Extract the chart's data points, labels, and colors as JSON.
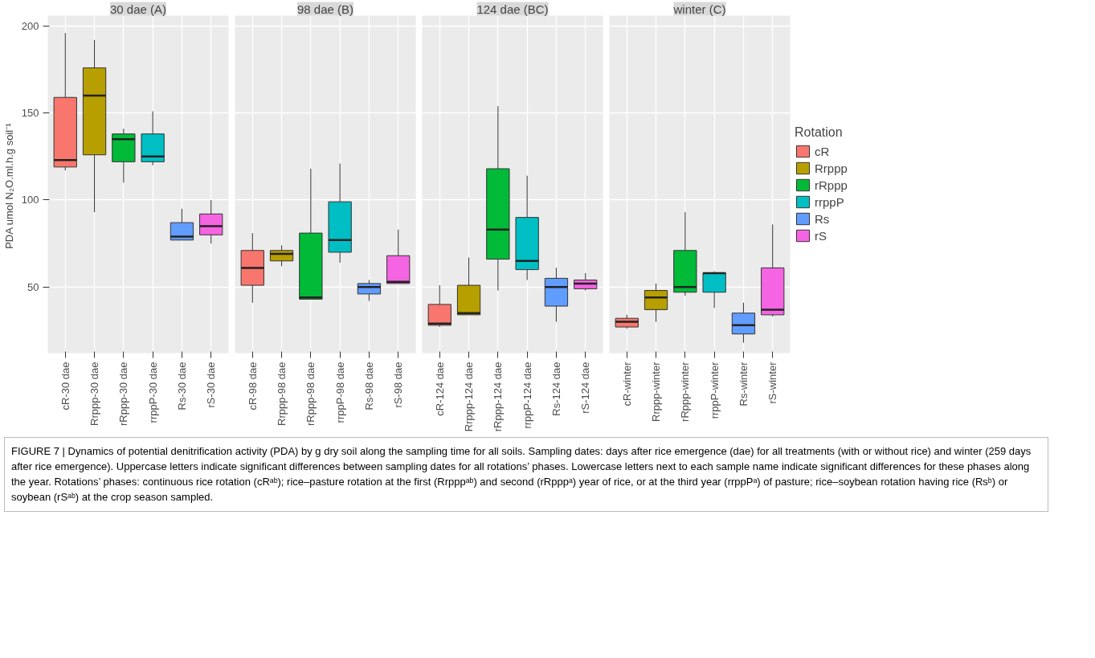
{
  "chart_data": [
    {
      "type": "box",
      "title": "30 dae (A)",
      "ylabel": "PDA  umol N₂O.ml.h.g soil⁻¹",
      "categories": [
        "cR-30 dae",
        "Rrppp-30 dae",
        "rRppp-30 dae",
        "rrppP-30 dae",
        "Rs-30 dae",
        "rS-30 dae"
      ],
      "ylim": [
        12,
        206
      ],
      "yticks": [
        50,
        100,
        150,
        200
      ],
      "grid": true,
      "series": [
        {
          "color": "#f8766d",
          "boxes": [
            {
              "low": 117,
              "q1": 119,
              "median": 123,
              "q3": 159,
              "high": 196
            },
            null,
            null,
            null,
            null,
            null
          ]
        },
        {
          "color": "#b79f00",
          "boxes": [
            null,
            {
              "low": 93,
              "q1": 126,
              "median": 160,
              "q3": 176,
              "high": 192
            },
            null,
            null,
            null,
            null
          ]
        },
        {
          "color": "#00ba38",
          "boxes": [
            null,
            null,
            {
              "low": 110,
              "q1": 122,
              "median": 135,
              "q3": 138,
              "high": 141
            },
            null,
            null,
            null
          ]
        },
        {
          "color": "#00bfc4",
          "boxes": [
            null,
            null,
            null,
            {
              "low": 120,
              "q1": 122,
              "median": 125,
              "q3": 138,
              "high": 151
            },
            null,
            null
          ]
        },
        {
          "color": "#619cff",
          "boxes": [
            null,
            null,
            null,
            null,
            {
              "low": 77,
              "q1": 77,
              "median": 79,
              "q3": 87,
              "high": 95
            },
            null
          ]
        },
        {
          "color": "#f564e3",
          "boxes": [
            null,
            null,
            null,
            null,
            null,
            {
              "low": 75,
              "q1": 80,
              "median": 85,
              "q3": 92,
              "high": 100
            }
          ]
        }
      ]
    },
    {
      "type": "box",
      "title": "98 dae (B)",
      "categories": [
        "cR-98 dae",
        "Rrppp-98 dae",
        "rRppp-98 dae",
        "rrppP-98 dae",
        "Rs-98 dae",
        "rS-98 dae"
      ],
      "ylim": [
        12,
        206
      ],
      "yticks": [
        50,
        100,
        150,
        200
      ],
      "grid": true,
      "tick_labels": "x",
      "series": [
        {
          "color": "#f8766d",
          "boxes": [
            {
              "low": 41,
              "q1": 51,
              "median": 61,
              "q3": 71,
              "high": 81
            },
            null,
            null,
            null,
            null,
            null
          ]
        },
        {
          "color": "#b79f00",
          "boxes": [
            null,
            {
              "low": 62,
              "q1": 65,
              "median": 69,
              "q3": 71,
              "high": 74
            },
            null,
            null,
            null,
            null
          ]
        },
        {
          "color": "#00ba38",
          "boxes": [
            null,
            null,
            {
              "low": 43,
              "q1": 43,
              "median": 44,
              "q3": 81,
              "high": 118
            },
            null,
            null,
            null
          ]
        },
        {
          "color": "#00bfc4",
          "boxes": [
            null,
            null,
            null,
            {
              "low": 64,
              "q1": 70,
              "median": 77,
              "q3": 99,
              "high": 121
            },
            null,
            null
          ]
        },
        {
          "color": "#619cff",
          "boxes": [
            null,
            null,
            null,
            null,
            {
              "low": 42,
              "q1": 46,
              "median": 50,
              "q3": 52,
              "high": 54
            },
            null
          ]
        },
        {
          "color": "#f564e3",
          "boxes": [
            null,
            null,
            null,
            null,
            null,
            {
              "low": 52,
              "q1": 52,
              "median": 53,
              "q3": 68,
              "high": 83
            }
          ]
        }
      ]
    },
    {
      "type": "box",
      "title": "124 dae (BC)",
      "categories": [
        "cR-124 dae",
        "Rrppp-124 dae",
        "rRppp-124 dae",
        "rrppP-124 dae",
        "Rs-124 dae",
        "rS-124 dae"
      ],
      "ylim": [
        12,
        206
      ],
      "yticks": [
        50,
        100,
        150,
        200
      ],
      "grid": true,
      "tick_labels": "x",
      "series": [
        {
          "color": "#f8766d",
          "boxes": [
            {
              "low": 27,
              "q1": 28,
              "median": 29,
              "q3": 40,
              "high": 51
            },
            null,
            null,
            null,
            null,
            null
          ]
        },
        {
          "color": "#b79f00",
          "boxes": [
            null,
            {
              "low": 34,
              "q1": 34,
              "median": 35,
              "q3": 51,
              "high": 67
            },
            null,
            null,
            null,
            null
          ]
        },
        {
          "color": "#00ba38",
          "boxes": [
            null,
            null,
            {
              "low": 48,
              "q1": 66,
              "median": 83,
              "q3": 118,
              "high": 154
            },
            null,
            null,
            null
          ]
        },
        {
          "color": "#00bfc4",
          "boxes": [
            null,
            null,
            null,
            {
              "low": 54,
              "q1": 60,
              "median": 65,
              "q3": 90,
              "high": 114
            },
            null,
            null
          ]
        },
        {
          "color": "#619cff",
          "boxes": [
            null,
            null,
            null,
            null,
            {
              "low": 30,
              "q1": 39,
              "median": 50,
              "q3": 55,
              "high": 61
            },
            null
          ]
        },
        {
          "color": "#f564e3",
          "boxes": [
            null,
            null,
            null,
            null,
            null,
            {
              "low": 48,
              "q1": 49,
              "median": 52,
              "q3": 54,
              "high": 58
            }
          ]
        }
      ]
    },
    {
      "type": "box",
      "title": "winter (C)",
      "categories": [
        "cR-winter",
        "Rrppp-winter",
        "rRppp-winter",
        "rrppP-winter",
        "Rs-winter",
        "rS-winter"
      ],
      "ylim": [
        12,
        206
      ],
      "yticks": [
        50,
        100,
        150,
        200
      ],
      "grid": true,
      "tick_labels": "x",
      "legend": "right",
      "legend_title": "Rotation",
      "series": [
        {
          "name": "cR",
          "color": "#f8766d",
          "boxes": [
            {
              "low": 26,
              "q1": 27,
              "median": 30,
              "q3": 32,
              "high": 34
            },
            null,
            null,
            null,
            null,
            null
          ]
        },
        {
          "name": "Rrppp",
          "color": "#b79f00",
          "boxes": [
            null,
            {
              "low": 30,
              "q1": 37,
              "median": 44,
              "q3": 48,
              "high": 52
            },
            null,
            null,
            null,
            null
          ]
        },
        {
          "name": "rRppp",
          "color": "#00ba38",
          "boxes": [
            null,
            null,
            {
              "low": 45,
              "q1": 47,
              "median": 50,
              "q3": 71,
              "high": 93
            },
            null,
            null,
            null
          ]
        },
        {
          "name": "rrppP",
          "color": "#00bfc4",
          "boxes": [
            null,
            null,
            null,
            {
              "low": 38,
              "q1": 47,
              "median": 58,
              "q3": 58,
              "high": 59
            },
            null,
            null
          ]
        },
        {
          "name": "Rs",
          "color": "#619cff",
          "boxes": [
            null,
            null,
            null,
            null,
            {
              "low": 18,
              "q1": 23,
              "median": 28,
              "q3": 35,
              "high": 41
            },
            null
          ]
        },
        {
          "name": "rS",
          "color": "#f564e3",
          "boxes": [
            null,
            null,
            null,
            null,
            null,
            {
              "low": 33,
              "q1": 34,
              "median": 37,
              "q3": 61,
              "high": 86
            }
          ]
        }
      ],
      "annotations": [
        "FIGURE 7 | Dynamics of potential denitrification activity (PDA) by g dry soil along the sampling time for all soils. Sampling dates: days after rice emergence (dae) for all treatments (with or without rice) and winter (259 days after rice emergence). Uppercase letters indicate significant differences between sampling dates for all rotations’ phases. Lowercase letters next to each sample name indicate significant differences for these phases along the year. Rotations’ phases: continuous rice rotation (cRᵃᵇ); rice–pasture rotation at the first (Rrpppᵃᵇ) and second (rRpppᵃ) year of rice, or at the third year (rrppPᵃ) of pasture; rice–soybean rotation having rice (Rsᵇ) or soybean (rSᵃᵇ) at the crop season sampled."
      ]
    }
  ]
}
